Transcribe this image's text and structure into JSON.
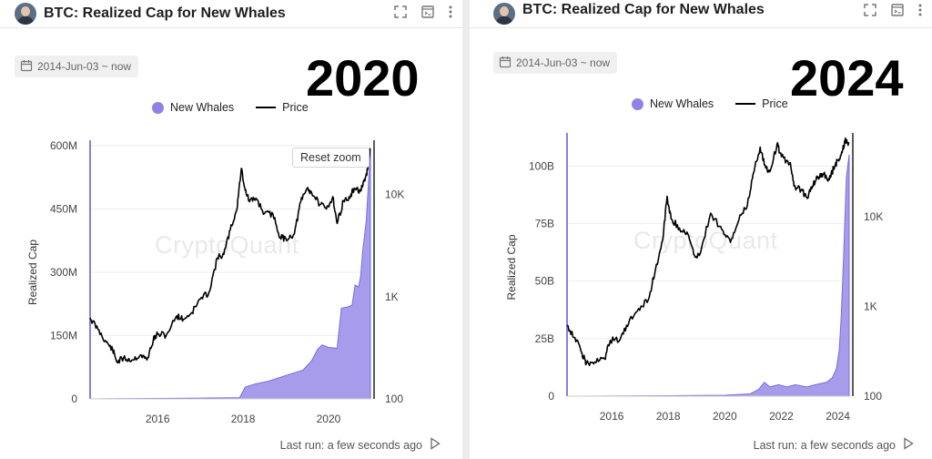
{
  "panels": [
    {
      "title": "BTC: Realized Cap for New Whales",
      "date_range": "2014-Jun-03 ~ now",
      "year_label": "2020",
      "legend": {
        "series1": "New Whales",
        "series2": "Price"
      },
      "watermark": "CryptoQuant",
      "reset_zoom": "Reset zoom",
      "last_run": "Last run: a few seconds ago"
    },
    {
      "title": "BTC: Realized Cap for New Whales",
      "date_range": "2014-Jun-03 ~ now",
      "year_label": "2024",
      "legend": {
        "series1": "New Whales",
        "series2": "Price"
      },
      "watermark": "CryptoQuant",
      "last_run": "Last run: a few seconds ago"
    }
  ],
  "colors": {
    "area": "#9d91ea",
    "area_edge": "#7a6bdf",
    "price": "#000000"
  },
  "chart_data": [
    {
      "type": "area",
      "title": "BTC: Realized Cap for New Whales",
      "ylabel": "Realized Cap",
      "y_ticks": [
        {
          "v": 0,
          "label": "0"
        },
        {
          "v": 150,
          "label": "150M"
        },
        {
          "v": 300,
          "label": "300M"
        },
        {
          "v": 450,
          "label": "450M"
        },
        {
          "v": 600,
          "label": "600M"
        }
      ],
      "y2_ticks": [
        {
          "v": 100,
          "label": "100"
        },
        {
          "v": 1000,
          "label": "1K"
        },
        {
          "v": 10000,
          "label": "10K"
        }
      ],
      "x_ticks": [
        {
          "v": 2016,
          "label": "2016"
        },
        {
          "v": 2018,
          "label": "2018"
        },
        {
          "v": 2020,
          "label": "2020"
        }
      ],
      "x_range": [
        2014.42,
        2020.98
      ],
      "y_range": [
        0,
        600
      ],
      "y2_range": [
        100,
        30000
      ],
      "y2_scale": "log",
      "grid": true,
      "legend_position": "top-center",
      "series": [
        {
          "name": "New Whales",
          "axis": "left",
          "type": "area",
          "points": [
            [
              2014.42,
              0
            ],
            [
              2016.0,
              1
            ],
            [
              2017.0,
              2
            ],
            [
              2017.92,
              3
            ],
            [
              2018.05,
              28
            ],
            [
              2018.3,
              36
            ],
            [
              2018.6,
              42
            ],
            [
              2018.9,
              52
            ],
            [
              2019.2,
              62
            ],
            [
              2019.4,
              68
            ],
            [
              2019.6,
              90
            ],
            [
              2019.75,
              118
            ],
            [
              2019.85,
              128
            ],
            [
              2020.0,
              122
            ],
            [
              2020.2,
              120
            ],
            [
              2020.3,
              215
            ],
            [
              2020.45,
              218
            ],
            [
              2020.55,
              222
            ],
            [
              2020.62,
              270
            ],
            [
              2020.7,
              265
            ],
            [
              2020.75,
              290
            ],
            [
              2020.8,
              350
            ],
            [
              2020.88,
              420
            ],
            [
              2020.94,
              520
            ],
            [
              2020.98,
              590
            ]
          ]
        },
        {
          "name": "Price",
          "axis": "right",
          "type": "line",
          "points": [
            [
              2014.42,
              620
            ],
            [
              2014.6,
              480
            ],
            [
              2014.8,
              360
            ],
            [
              2014.95,
              300
            ],
            [
              2015.05,
              230
            ],
            [
              2015.2,
              250
            ],
            [
              2015.4,
              240
            ],
            [
              2015.6,
              270
            ],
            [
              2015.75,
              240
            ],
            [
              2015.9,
              380
            ],
            [
              2016.0,
              430
            ],
            [
              2016.2,
              420
            ],
            [
              2016.45,
              650
            ],
            [
              2016.6,
              600
            ],
            [
              2016.8,
              700
            ],
            [
              2017.0,
              950
            ],
            [
              2017.2,
              1100
            ],
            [
              2017.4,
              2400
            ],
            [
              2017.55,
              2600
            ],
            [
              2017.7,
              4500
            ],
            [
              2017.85,
              7000
            ],
            [
              2017.96,
              18000
            ],
            [
              2018.05,
              11000
            ],
            [
              2018.15,
              8500
            ],
            [
              2018.3,
              9200
            ],
            [
              2018.5,
              6500
            ],
            [
              2018.7,
              6400
            ],
            [
              2018.87,
              3800
            ],
            [
              2019.0,
              3700
            ],
            [
              2019.2,
              4100
            ],
            [
              2019.35,
              8500
            ],
            [
              2019.5,
              11500
            ],
            [
              2019.6,
              10500
            ],
            [
              2019.8,
              8000
            ],
            [
              2019.95,
              7200
            ],
            [
              2020.1,
              9500
            ],
            [
              2020.2,
              5200
            ],
            [
              2020.35,
              8700
            ],
            [
              2020.5,
              9200
            ],
            [
              2020.6,
              11500
            ],
            [
              2020.75,
              10800
            ],
            [
              2020.85,
              13500
            ],
            [
              2020.92,
              18500
            ],
            [
              2020.98,
              28000
            ]
          ]
        }
      ]
    },
    {
      "type": "area",
      "title": "BTC: Realized Cap for New Whales",
      "ylabel": "Realized Cap",
      "y_ticks": [
        {
          "v": 0,
          "label": "0"
        },
        {
          "v": 25,
          "label": "25B"
        },
        {
          "v": 50,
          "label": "50B"
        },
        {
          "v": 75,
          "label": "75B"
        },
        {
          "v": 100,
          "label": "100B"
        }
      ],
      "y2_ticks": [
        {
          "v": 100,
          "label": "100"
        },
        {
          "v": 1000,
          "label": "1K"
        },
        {
          "v": 10000,
          "label": "10K"
        }
      ],
      "x_ticks": [
        {
          "v": 2016,
          "label": "2016"
        },
        {
          "v": 2018,
          "label": "2018"
        },
        {
          "v": 2020,
          "label": "2020"
        },
        {
          "v": 2022,
          "label": "2022"
        },
        {
          "v": 2024,
          "label": "2024"
        }
      ],
      "x_range": [
        2014.42,
        2024.4
      ],
      "y_range": [
        0,
        112
      ],
      "y2_range": [
        100,
        75000
      ],
      "y2_scale": "log",
      "grid": true,
      "legend_position": "top-center",
      "series": [
        {
          "name": "New Whales",
          "axis": "left",
          "type": "area",
          "points": [
            [
              2014.42,
              0
            ],
            [
              2018.0,
              0.2
            ],
            [
              2020.0,
              0.4
            ],
            [
              2020.9,
              1
            ],
            [
              2021.2,
              3
            ],
            [
              2021.4,
              6
            ],
            [
              2021.6,
              4
            ],
            [
              2021.9,
              5
            ],
            [
              2022.2,
              4
            ],
            [
              2022.5,
              5
            ],
            [
              2022.9,
              4
            ],
            [
              2023.2,
              5
            ],
            [
              2023.6,
              6
            ],
            [
              2023.8,
              8
            ],
            [
              2023.95,
              12
            ],
            [
              2024.05,
              20
            ],
            [
              2024.12,
              35
            ],
            [
              2024.2,
              60
            ],
            [
              2024.3,
              95
            ],
            [
              2024.4,
              105
            ]
          ]
        },
        {
          "name": "Price",
          "axis": "right",
          "type": "line",
          "points": [
            [
              2014.42,
              620
            ],
            [
              2014.7,
              450
            ],
            [
              2014.95,
              300
            ],
            [
              2015.1,
              230
            ],
            [
              2015.4,
              240
            ],
            [
              2015.75,
              260
            ],
            [
              2015.95,
              420
            ],
            [
              2016.3,
              430
            ],
            [
              2016.6,
              650
            ],
            [
              2016.95,
              950
            ],
            [
              2017.3,
              1200
            ],
            [
              2017.55,
              2600
            ],
            [
              2017.8,
              5500
            ],
            [
              2017.96,
              17000
            ],
            [
              2018.1,
              9500
            ],
            [
              2018.4,
              7500
            ],
            [
              2018.7,
              6400
            ],
            [
              2018.9,
              3800
            ],
            [
              2019.1,
              3700
            ],
            [
              2019.5,
              11000
            ],
            [
              2019.9,
              7200
            ],
            [
              2020.2,
              5200
            ],
            [
              2020.5,
              9300
            ],
            [
              2020.8,
              13500
            ],
            [
              2021.0,
              30000
            ],
            [
              2021.25,
              60000
            ],
            [
              2021.45,
              35000
            ],
            [
              2021.6,
              32000
            ],
            [
              2021.85,
              65000
            ],
            [
              2022.0,
              47000
            ],
            [
              2022.3,
              40000
            ],
            [
              2022.45,
              22000
            ],
            [
              2022.7,
              20000
            ],
            [
              2022.9,
              16500
            ],
            [
              2023.1,
              22000
            ],
            [
              2023.3,
              28000
            ],
            [
              2023.5,
              30000
            ],
            [
              2023.7,
              26000
            ],
            [
              2023.85,
              35000
            ],
            [
              2024.0,
              43000
            ],
            [
              2024.15,
              52000
            ],
            [
              2024.25,
              70000
            ],
            [
              2024.4,
              66000
            ]
          ]
        }
      ]
    }
  ]
}
